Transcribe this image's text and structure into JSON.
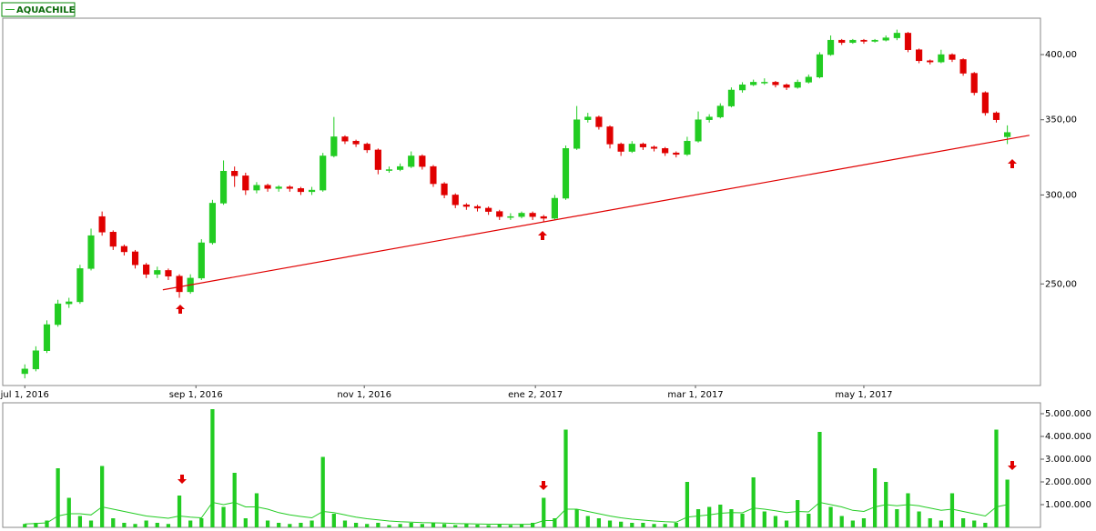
{
  "chart_data": [
    {
      "type": "candlestick",
      "name": "AQUACHILE",
      "log": true,
      "up_color": "#22cc22",
      "down_color": "#e00000",
      "x": [
        0,
        4,
        8,
        12,
        16,
        20,
        24,
        28,
        32,
        36,
        40,
        44,
        48,
        52,
        56,
        60,
        64,
        68,
        72,
        76,
        80,
        84,
        88,
        92,
        96,
        100,
        104,
        108,
        112,
        116,
        120,
        124,
        128,
        132,
        136,
        140,
        144,
        148,
        152,
        156,
        160,
        164,
        168,
        172,
        176,
        180,
        184,
        188,
        192,
        196,
        200,
        204,
        208,
        212,
        216,
        220,
        224,
        228,
        232,
        236,
        240,
        244,
        248,
        252,
        256,
        260,
        264,
        268,
        272,
        276,
        280,
        284,
        288,
        292,
        296,
        300,
        304,
        308,
        312,
        316,
        320,
        324,
        328,
        332,
        336,
        340,
        344,
        348,
        352,
        356
      ],
      "open": [
        208,
        210,
        218,
        230,
        240,
        241,
        258,
        287,
        278,
        270,
        267,
        260,
        255,
        257,
        254,
        246,
        253,
        272,
        295,
        315,
        312,
        303,
        306,
        304,
        305,
        304,
        302,
        303,
        325,
        338,
        335,
        333,
        329,
        316,
        316,
        318,
        325,
        318,
        307,
        300,
        294,
        293,
        292,
        290,
        287,
        287,
        289,
        287,
        286,
        298,
        330,
        350,
        352,
        345,
        333,
        328,
        333,
        331,
        330,
        327,
        326,
        335,
        350,
        352,
        360,
        372,
        376,
        378,
        378,
        376,
        374,
        378,
        382,
        400,
        412,
        410,
        412,
        411,
        412,
        414,
        418,
        404,
        395,
        394,
        400,
        396,
        385,
        370,
        355,
        338
      ],
      "high": [
        212,
        220,
        232,
        242,
        243,
        260,
        280,
        290,
        279,
        271,
        268,
        261,
        259,
        258,
        255,
        255,
        274,
        297,
        322,
        318,
        314,
        308,
        307,
        306,
        306,
        305,
        305,
        327,
        352,
        339,
        336,
        334,
        330,
        318,
        320,
        328,
        326,
        319,
        308,
        301,
        295,
        294,
        293,
        291,
        289,
        290,
        290,
        288,
        300,
        332,
        360,
        355,
        353,
        346,
        334,
        335,
        334,
        332,
        331,
        328,
        338,
        356,
        354,
        362,
        374,
        378,
        380,
        381,
        379,
        377,
        380,
        384,
        402,
        416,
        413,
        413,
        413,
        413,
        416,
        421,
        419,
        405,
        396,
        404,
        401,
        397,
        386,
        371,
        356,
        346
      ],
      "low": [
        206,
        209,
        217,
        229,
        238,
        240,
        257,
        276,
        268,
        265,
        258,
        253,
        253,
        252,
        243,
        245,
        252,
        271,
        294,
        305,
        300,
        301,
        302,
        302,
        302,
        300,
        300,
        302,
        324,
        333,
        331,
        327,
        313,
        314,
        315,
        317,
        316,
        305,
        298,
        292,
        291,
        290,
        288,
        285,
        285,
        286,
        285,
        284,
        285,
        297,
        329,
        348,
        343,
        330,
        325,
        327,
        329,
        328,
        325,
        324,
        325,
        334,
        348,
        351,
        359,
        370,
        375,
        376,
        374,
        372,
        373,
        377,
        381,
        399,
        408,
        409,
        409,
        410,
        411,
        412,
        402,
        393,
        392,
        393,
        394,
        383,
        368,
        353,
        348,
        333
      ],
      "close": [
        210,
        218,
        230,
        240,
        241,
        258,
        276,
        278,
        270,
        267,
        260,
        255,
        257,
        254,
        246,
        253,
        272,
        295,
        315,
        312,
        303,
        306,
        304,
        305,
        304,
        302,
        303,
        325,
        338,
        335,
        333,
        329,
        316,
        316,
        318,
        325,
        318,
        307,
        300,
        294,
        293,
        292,
        290,
        287,
        287,
        289,
        287,
        286,
        298,
        330,
        350,
        352,
        345,
        333,
        328,
        333,
        331,
        330,
        327,
        326,
        335,
        350,
        352,
        360,
        372,
        376,
        378,
        378,
        376,
        374,
        378,
        382,
        400,
        412,
        410,
        412,
        411,
        412,
        414,
        418,
        404,
        395,
        394,
        400,
        396,
        385,
        370,
        355,
        350,
        341
      ],
      "xlim": [
        -8,
        368
      ],
      "xticks": [
        {
          "value": 0,
          "label": "jul 1, 2016"
        },
        {
          "value": 62,
          "label": "sep 1, 2016"
        },
        {
          "value": 123,
          "label": "nov 1, 2016"
        },
        {
          "value": 185,
          "label": "ene 2, 2017"
        },
        {
          "value": 243,
          "label": "mar 1, 2017"
        },
        {
          "value": 304,
          "label": "may 1, 2017"
        }
      ],
      "ylim": [
        203,
        431
      ],
      "yticks": [
        {
          "value": 250,
          "label": "250,00"
        },
        {
          "value": 300,
          "label": "300,00"
        },
        {
          "value": 350,
          "label": "350,00"
        },
        {
          "value": 400,
          "label": "400,00"
        }
      ],
      "trendline": {
        "x": [
          50,
          364
        ],
        "values": [
          247,
          339
        ],
        "color": "#e00000"
      }
    },
    {
      "type": "bar",
      "color": "#22cc22",
      "x": [
        0,
        4,
        8,
        12,
        16,
        20,
        24,
        28,
        32,
        36,
        40,
        44,
        48,
        52,
        56,
        60,
        64,
        68,
        72,
        76,
        80,
        84,
        88,
        92,
        96,
        100,
        104,
        108,
        112,
        116,
        120,
        124,
        128,
        132,
        136,
        140,
        144,
        148,
        152,
        156,
        160,
        164,
        168,
        172,
        176,
        180,
        184,
        188,
        192,
        196,
        200,
        204,
        208,
        212,
        216,
        220,
        224,
        228,
        232,
        236,
        240,
        244,
        248,
        252,
        256,
        260,
        264,
        268,
        272,
        276,
        280,
        284,
        288,
        292,
        296,
        300,
        304,
        308,
        312,
        316,
        320,
        324,
        328,
        332,
        336,
        340,
        344,
        348,
        352,
        356
      ],
      "values": [
        150000,
        200000,
        300000,
        2600000,
        1300000,
        500000,
        300000,
        2700000,
        400000,
        200000,
        150000,
        300000,
        200000,
        150000,
        1400000,
        300000,
        400000,
        5200000,
        900000,
        2400000,
        400000,
        1500000,
        300000,
        200000,
        150000,
        200000,
        300000,
        3100000,
        600000,
        300000,
        200000,
        150000,
        200000,
        100000,
        150000,
        200000,
        150000,
        200000,
        150000,
        100000,
        150000,
        120000,
        100000,
        150000,
        100000,
        150000,
        200000,
        1300000,
        400000,
        4300000,
        800000,
        500000,
        400000,
        300000,
        250000,
        200000,
        200000,
        150000,
        150000,
        200000,
        2000000,
        800000,
        900000,
        1000000,
        800000,
        600000,
        2200000,
        700000,
        500000,
        300000,
        1200000,
        600000,
        4200000,
        900000,
        500000,
        300000,
        400000,
        2600000,
        2000000,
        800000,
        1500000,
        700000,
        400000,
        300000,
        1500000,
        400000,
        300000,
        200000,
        4300000,
        2100000
      ],
      "ma_values": [
        150000,
        170000,
        200000,
        500000,
        600000,
        600000,
        550000,
        900000,
        800000,
        700000,
        600000,
        500000,
        450000,
        400000,
        500000,
        450000,
        420000,
        1100000,
        1000000,
        1100000,
        900000,
        900000,
        800000,
        650000,
        550000,
        480000,
        420000,
        700000,
        650000,
        550000,
        450000,
        380000,
        330000,
        280000,
        250000,
        230000,
        210000,
        200000,
        190000,
        170000,
        160000,
        150000,
        140000,
        140000,
        130000,
        130000,
        140000,
        300000,
        300000,
        800000,
        800000,
        700000,
        600000,
        500000,
        420000,
        360000,
        320000,
        280000,
        250000,
        230000,
        450000,
        500000,
        550000,
        620000,
        650000,
        640000,
        850000,
        800000,
        730000,
        650000,
        700000,
        680000,
        1100000,
        1000000,
        900000,
        750000,
        700000,
        900000,
        1000000,
        950000,
        1000000,
        950000,
        850000,
        750000,
        800000,
        700000,
        600000,
        500000,
        900000,
        1000000
      ],
      "xlim": [
        -8,
        368
      ],
      "ylim": [
        0,
        5480000
      ],
      "yticks": [
        {
          "value": 1000000,
          "label": "1.000.000"
        },
        {
          "value": 2000000,
          "label": "2.000.000"
        },
        {
          "value": 3000000,
          "label": "3.000.000"
        },
        {
          "value": 4000000,
          "label": "4.000.000"
        },
        {
          "value": 5000000,
          "label": "5.000.000"
        }
      ]
    }
  ]
}
